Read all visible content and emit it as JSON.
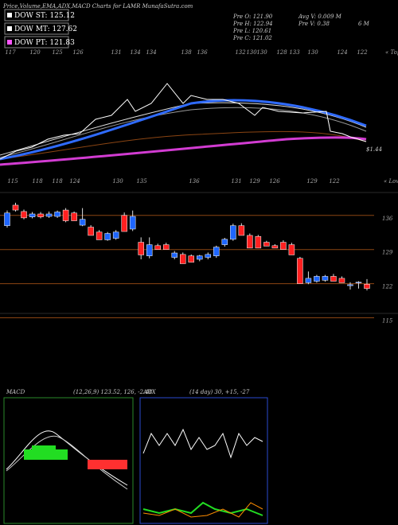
{
  "header": {
    "title": "Price,Volume,EMA,ADX,MACD Charts for LAMR MunafaSutra.com",
    "stats": [
      "Pre O: 121.90",
      "Pre H: 122.94",
      "Pre L: 120.61",
      "Pre C: 121.02",
      "Avg V: 0.009 M",
      "Pre V: 0.38",
      "6 M"
    ]
  },
  "legend": [
    {
      "label": "DOW ST: 125.12",
      "color": "#ffffff"
    },
    {
      "label": "DOW MT: 127.62",
      "color": "#ffffff"
    },
    {
      "label": "DOW PT: 121.83",
      "color": "#ff55ff"
    }
  ],
  "top_panel": {
    "tops": [
      "117",
      "120",
      "125",
      "126",
      "131",
      "134",
      "134",
      "138",
      "136",
      "132",
      "130",
      "130",
      "128",
      "133",
      "130",
      "124",
      "122"
    ],
    "tops_label": "« Tops",
    "lows": [
      "115",
      "118",
      "118",
      "124",
      "130",
      "135",
      "136",
      "131",
      "129",
      "126",
      "129",
      "122"
    ],
    "lows_label": "« Lows",
    "value_tag": "$1.44"
  },
  "chart_data": {
    "type": "candlestick",
    "up_color": "#1e66ff",
    "down_color": "#ff2020",
    "ylim": [
      111.5,
      140.7
    ],
    "yticks": [
      136,
      129,
      122,
      115
    ],
    "grid": true,
    "open": [
      133.9,
      138.1,
      136.8,
      135.7,
      136.3,
      135.8,
      135.8,
      137.1,
      136.5,
      134.0,
      133.6,
      132.6,
      131.0,
      131.3,
      136.0,
      133.2,
      130.5,
      127.7,
      129.8,
      130.0,
      127.4,
      128.0,
      127.7,
      127.0,
      127.4,
      127.7,
      130.0,
      131.1,
      133.9,
      131.9,
      131.7,
      130.5,
      129.8,
      130.5,
      130.0,
      127.2,
      122.2,
      122.5,
      122.7,
      123.5,
      123.1,
      121.6,
      122.2,
      121.9
    ],
    "high": [
      137.0,
      138.6,
      137.2,
      136.7,
      136.7,
      136.8,
      137.0,
      137.5,
      136.8,
      137.5,
      134.0,
      133.0,
      132.6,
      133.0,
      136.6,
      137.0,
      131.5,
      131.5,
      130.2,
      130.4,
      128.7,
      128.4,
      128.0,
      127.9,
      128.4,
      129.8,
      131.4,
      134.3,
      134.4,
      132.3,
      132.0,
      130.8,
      130.1,
      130.9,
      130.4,
      127.5,
      124.5,
      123.8,
      123.8,
      124.0,
      123.5,
      122.3,
      122.5,
      122.94
    ],
    "low": [
      133.5,
      136.8,
      135.2,
      135.4,
      135.4,
      135.5,
      135.5,
      134.6,
      134.9,
      133.8,
      131.9,
      131.0,
      130.8,
      131.0,
      132.7,
      132.8,
      127.0,
      127.2,
      129.0,
      129.0,
      127.0,
      126.1,
      126.4,
      126.6,
      127.0,
      127.3,
      129.6,
      130.8,
      131.9,
      129.3,
      129.3,
      129.7,
      129.3,
      129.0,
      127.9,
      122.0,
      121.9,
      122.2,
      122.4,
      122.5,
      122.2,
      120.8,
      121.0,
      120.61
    ],
    "close": [
      136.5,
      137.1,
      135.5,
      136.3,
      135.7,
      136.3,
      136.7,
      134.9,
      134.9,
      135.2,
      131.9,
      131.0,
      132.3,
      132.6,
      132.7,
      135.8,
      127.9,
      130.0,
      129.0,
      129.0,
      128.3,
      126.1,
      126.4,
      127.7,
      128.0,
      129.5,
      131.1,
      133.9,
      131.9,
      129.3,
      129.3,
      129.7,
      129.3,
      129.0,
      127.9,
      122.0,
      123.1,
      123.5,
      123.5,
      122.5,
      122.2,
      121.8,
      122.3,
      121.02
    ]
  },
  "macd": {
    "title": "MACD",
    "params": "(12,26,9) 123.52, 126, -2.48"
  },
  "adx": {
    "title": "ADX",
    "params": "(14 day) 30, +15, -27"
  }
}
